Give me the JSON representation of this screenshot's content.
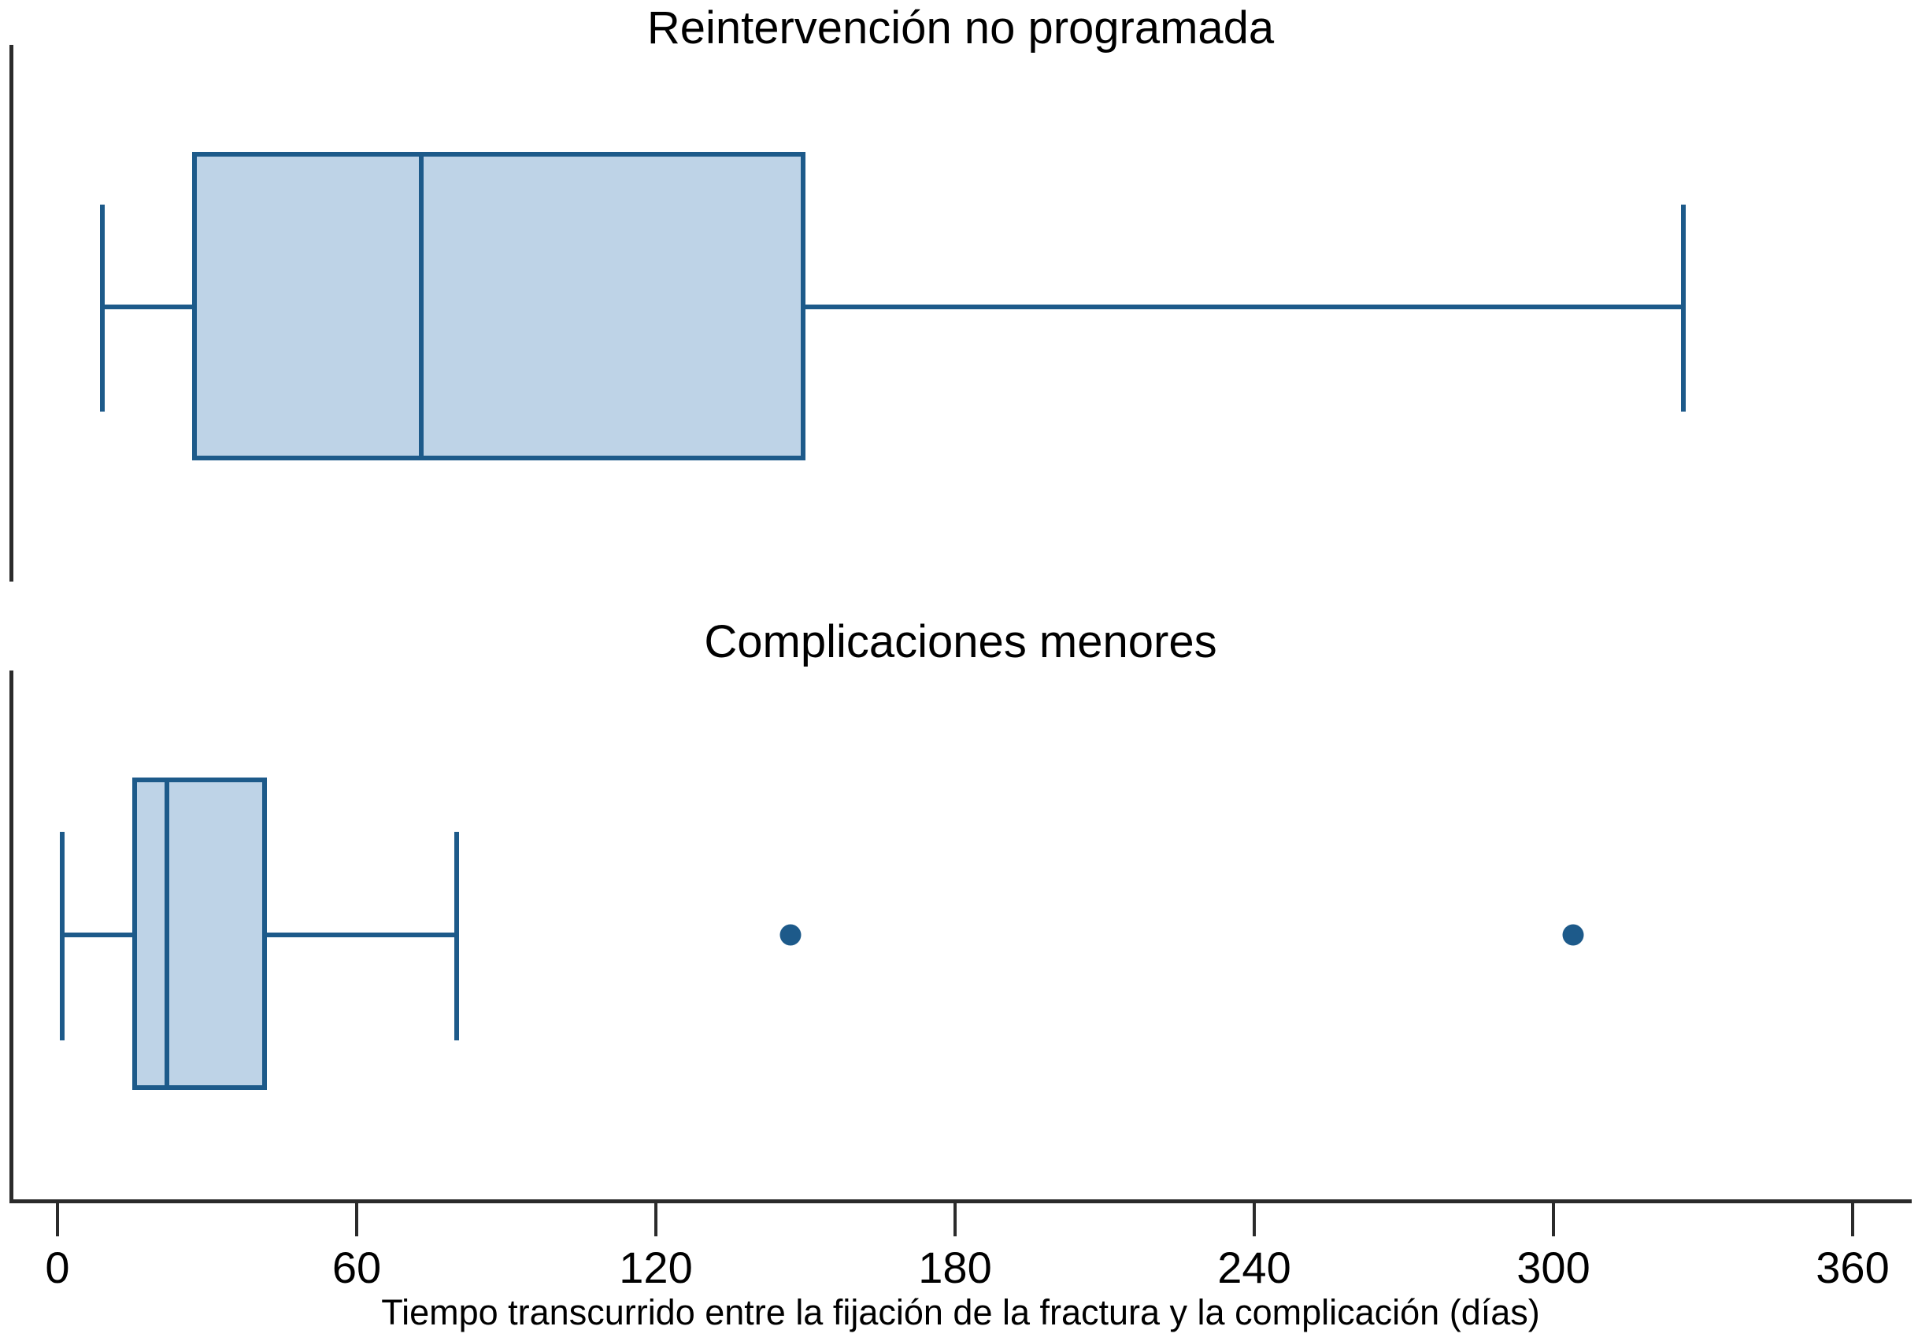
{
  "chart_data": {
    "type": "boxplot",
    "orientation": "horizontal",
    "title": "",
    "xlabel": "Tiempo transcurrido entre la fijación de la fractura y la complicación (días)",
    "ylabel": "",
    "xlim": [
      0,
      360
    ],
    "x_ticks": [
      0,
      60,
      120,
      180,
      240,
      300,
      360
    ],
    "grid": false,
    "legend": false,
    "panels": [
      {
        "title": "Reintervención no programada",
        "stats": {
          "min": 9,
          "q1": 27,
          "median": 73,
          "q3": 150,
          "max": 326
        },
        "outliers": []
      },
      {
        "title": "Complicaciones menores",
        "stats": {
          "min": 1,
          "q1": 15,
          "median": 22,
          "q3": 42,
          "max": 80
        },
        "outliers": [
          147,
          304
        ]
      }
    ],
    "colors": {
      "box_fill": "#bed3e7",
      "box_stroke": "#1d5a8a",
      "outlier_fill": "#1d5a8a",
      "axis_line": "#2b2b2b",
      "text": "#000000"
    }
  }
}
